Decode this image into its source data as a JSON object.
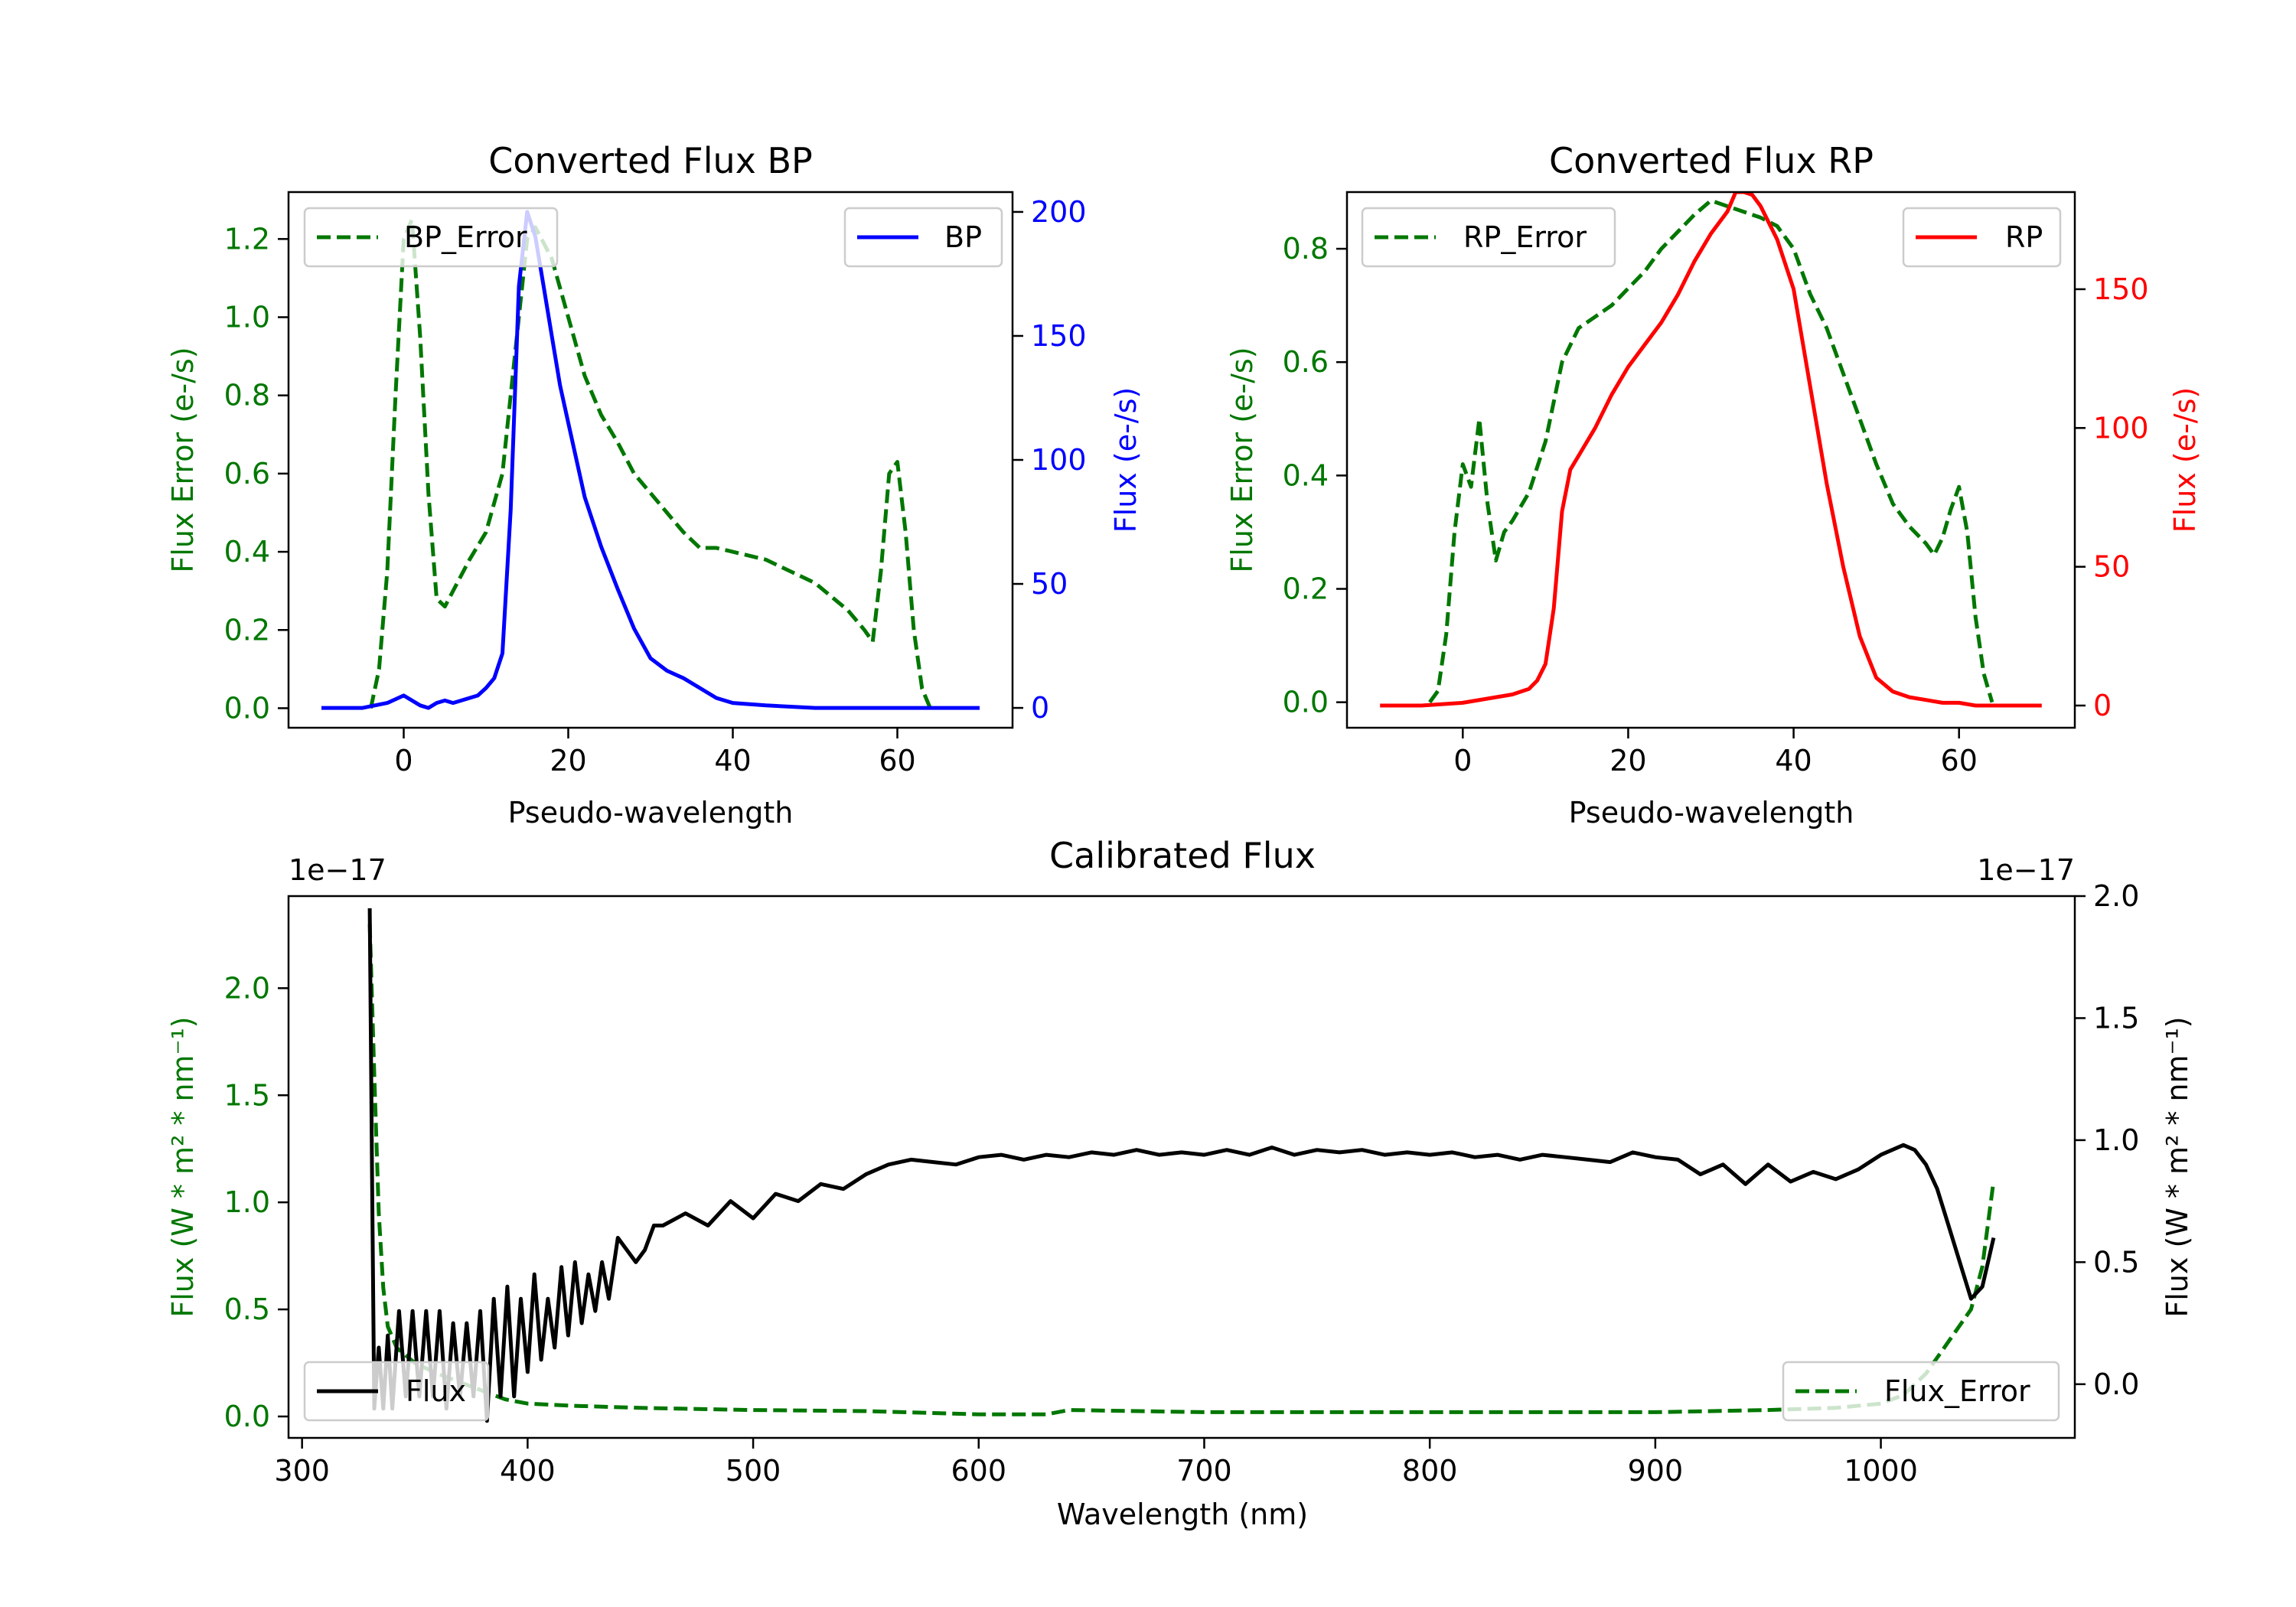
{
  "colors": {
    "error": "#007700",
    "bp": "#0000ff",
    "rp": "#ff0000",
    "calibrated": "#000000"
  },
  "chart_data": [
    {
      "id": "bp",
      "type": "line",
      "title": "Converted Flux BP",
      "xlabel": "Pseudo-wavelength",
      "ylabel_left": "Flux Error (e-/s)",
      "ylabel_right": "Flux (e-/s)",
      "xlim": [
        -14,
        74
      ],
      "ylim_left": [
        -0.05,
        1.32
      ],
      "ylim_right": [
        -8,
        208
      ],
      "xticks": [
        0,
        20,
        40,
        60
      ],
      "yticks_left": [
        0.0,
        0.2,
        0.4,
        0.6,
        0.8,
        1.0,
        1.2
      ],
      "yticks_right": [
        0,
        50,
        100,
        150,
        200
      ],
      "legend": [
        {
          "label": "BP_Error",
          "style": "dashed",
          "color": "#007700",
          "position": "upper-left"
        },
        {
          "label": "BP",
          "style": "solid",
          "color": "#0000ff",
          "position": "upper-right"
        }
      ],
      "series": [
        {
          "name": "BP_Error",
          "axis": "left",
          "style": "dashed",
          "color": "#007700",
          "x": [
            -4,
            -3,
            -2,
            -1,
            0,
            1,
            2,
            3,
            4,
            5,
            6,
            8,
            10,
            12,
            14,
            15,
            16,
            17,
            18,
            20,
            22,
            24,
            26,
            28,
            30,
            32,
            34,
            36,
            38,
            40,
            44,
            46,
            48,
            50,
            54,
            56,
            57,
            58,
            59,
            60,
            61,
            62,
            63,
            64
          ],
          "y": [
            0.0,
            0.1,
            0.35,
            0.8,
            1.2,
            1.25,
            0.95,
            0.55,
            0.28,
            0.26,
            0.3,
            0.38,
            0.45,
            0.6,
            1.0,
            1.2,
            1.23,
            1.19,
            1.15,
            1.0,
            0.85,
            0.75,
            0.68,
            0.6,
            0.55,
            0.5,
            0.45,
            0.41,
            0.41,
            0.4,
            0.38,
            0.36,
            0.34,
            0.32,
            0.25,
            0.2,
            0.17,
            0.35,
            0.6,
            0.63,
            0.45,
            0.2,
            0.05,
            0.0
          ]
        },
        {
          "name": "BP",
          "axis": "right",
          "style": "solid",
          "color": "#0000ff",
          "x": [
            -10,
            -5,
            -2,
            0,
            1,
            2,
            3,
            4,
            5,
            6,
            7,
            8,
            9,
            10,
            11,
            12,
            13,
            14,
            15,
            16,
            17,
            18,
            19,
            20,
            22,
            24,
            26,
            28,
            30,
            32,
            34,
            36,
            38,
            40,
            44,
            50,
            60,
            70
          ],
          "y": [
            0,
            0,
            2,
            5,
            3,
            1,
            0,
            2,
            3,
            2,
            3,
            4,
            5,
            8,
            12,
            22,
            80,
            170,
            200,
            190,
            170,
            150,
            130,
            115,
            85,
            65,
            48,
            32,
            20,
            15,
            12,
            8,
            4,
            2,
            1,
            0,
            0,
            0
          ]
        }
      ]
    },
    {
      "id": "rp",
      "type": "line",
      "title": "Converted Flux RP",
      "xlabel": "Pseudo-wavelength",
      "ylabel_left": "Flux Error (e-/s)",
      "ylabel_right": "Flux (e-/s)",
      "xlim": [
        -14,
        74
      ],
      "ylim_left": [
        -0.045,
        0.9
      ],
      "ylim_right": [
        -8,
        185
      ],
      "xticks": [
        0,
        20,
        40,
        60
      ],
      "yticks_left": [
        0.0,
        0.2,
        0.4,
        0.6,
        0.8
      ],
      "yticks_right": [
        0,
        50,
        100,
        150
      ],
      "legend": [
        {
          "label": "RP_Error",
          "style": "dashed",
          "color": "#007700",
          "position": "upper-left"
        },
        {
          "label": "RP",
          "style": "solid",
          "color": "#ff0000",
          "position": "upper-right"
        }
      ],
      "series": [
        {
          "name": "RP_Error",
          "axis": "left",
          "style": "dashed",
          "color": "#007700",
          "x": [
            -4,
            -3,
            -2,
            -1,
            0,
            1,
            2,
            3,
            4,
            5,
            6,
            8,
            10,
            12,
            14,
            16,
            18,
            20,
            22,
            24,
            26,
            28,
            30,
            32,
            34,
            36,
            38,
            40,
            42,
            44,
            46,
            48,
            50,
            52,
            54,
            56,
            57,
            58,
            59,
            60,
            61,
            62,
            63,
            64
          ],
          "y": [
            0.0,
            0.02,
            0.12,
            0.3,
            0.42,
            0.38,
            0.5,
            0.35,
            0.25,
            0.3,
            0.32,
            0.37,
            0.46,
            0.6,
            0.66,
            0.68,
            0.7,
            0.73,
            0.76,
            0.8,
            0.83,
            0.86,
            0.885,
            0.875,
            0.865,
            0.855,
            0.84,
            0.8,
            0.72,
            0.66,
            0.58,
            0.5,
            0.42,
            0.35,
            0.31,
            0.28,
            0.26,
            0.29,
            0.34,
            0.38,
            0.3,
            0.15,
            0.05,
            0.0
          ]
        },
        {
          "name": "RP",
          "axis": "right",
          "style": "solid",
          "color": "#ff0000",
          "x": [
            -10,
            -5,
            0,
            4,
            6,
            8,
            9,
            10,
            11,
            12,
            13,
            14,
            16,
            18,
            20,
            22,
            24,
            26,
            28,
            30,
            32,
            33,
            34,
            35,
            36,
            38,
            40,
            42,
            44,
            46,
            48,
            50,
            52,
            54,
            56,
            58,
            60,
            62,
            66,
            70
          ],
          "y": [
            0,
            0,
            1,
            3,
            4,
            6,
            9,
            15,
            35,
            70,
            85,
            90,
            100,
            112,
            122,
            130,
            138,
            148,
            160,
            170,
            178,
            185,
            185,
            184,
            180,
            168,
            150,
            115,
            80,
            50,
            25,
            10,
            5,
            3,
            2,
            1,
            1,
            0,
            0,
            0
          ]
        }
      ]
    },
    {
      "id": "calibrated",
      "type": "line",
      "title": "Calibrated Flux",
      "xlabel": "Wavelength (nm)",
      "ylabel_left": "Flux (W * m² * nm⁻¹)",
      "ylabel_right": "Flux (W * m² * nm⁻¹)",
      "offset_left": "1e−17",
      "offset_right": "1e−17",
      "xlim": [
        294,
        1086
      ],
      "ylim_left": [
        -0.1,
        2.43
      ],
      "ylim_right": [
        -0.22,
        2.0
      ],
      "xticks": [
        300,
        400,
        500,
        600,
        700,
        800,
        900,
        1000
      ],
      "yticks_left": [
        0.0,
        0.5,
        1.0,
        1.5,
        2.0
      ],
      "yticks_right": [
        0.0,
        0.5,
        1.0,
        1.5,
        2.0
      ],
      "legend": [
        {
          "label": "Flux",
          "style": "solid",
          "color": "#000000",
          "position": "lower-left"
        },
        {
          "label": "Flux_Error",
          "style": "dashed",
          "color": "#007700",
          "position": "lower-right"
        }
      ],
      "series": [
        {
          "name": "Flux_Error",
          "axis": "left",
          "style": "dashed",
          "color": "#007700",
          "x": [
            330,
            332,
            334,
            336,
            338,
            342,
            350,
            360,
            370,
            380,
            390,
            400,
            420,
            450,
            500,
            550,
            600,
            630,
            640,
            700,
            800,
            900,
            950,
            980,
            1000,
            1010,
            1020,
            1030,
            1040,
            1045,
            1050
          ],
          "y": [
            2.3,
            1.6,
            0.95,
            0.6,
            0.42,
            0.32,
            0.25,
            0.2,
            0.16,
            0.12,
            0.08,
            0.06,
            0.05,
            0.04,
            0.03,
            0.025,
            0.01,
            0.01,
            0.03,
            0.02,
            0.02,
            0.02,
            0.03,
            0.04,
            0.06,
            0.1,
            0.2,
            0.35,
            0.5,
            0.7,
            1.1
          ]
        },
        {
          "name": "Flux",
          "axis": "right",
          "style": "solid",
          "color": "#000000",
          "x": [
            330,
            331,
            332,
            334,
            336,
            338,
            340,
            343,
            346,
            349,
            352,
            355,
            358,
            361,
            364,
            367,
            370,
            373,
            376,
            379,
            382,
            385,
            388,
            391,
            394,
            397,
            400,
            403,
            406,
            409,
            412,
            415,
            418,
            421,
            424,
            427,
            430,
            433,
            436,
            440,
            444,
            448,
            452,
            456,
            460,
            470,
            480,
            490,
            500,
            510,
            520,
            530,
            540,
            550,
            560,
            570,
            580,
            590,
            600,
            610,
            620,
            630,
            640,
            650,
            660,
            670,
            680,
            690,
            700,
            710,
            720,
            730,
            740,
            750,
            760,
            770,
            780,
            790,
            800,
            810,
            820,
            830,
            840,
            850,
            860,
            870,
            880,
            890,
            900,
            910,
            920,
            930,
            940,
            950,
            960,
            970,
            980,
            990,
            1000,
            1010,
            1015,
            1020,
            1025,
            1030,
            1035,
            1040,
            1045,
            1050
          ],
          "y": [
            1.95,
            0.9,
            -0.1,
            0.15,
            -0.1,
            0.2,
            -0.1,
            0.3,
            -0.05,
            0.3,
            -0.05,
            0.3,
            -0.05,
            0.3,
            -0.1,
            0.25,
            -0.05,
            0.25,
            -0.05,
            0.3,
            -0.15,
            0.35,
            -0.05,
            0.4,
            -0.05,
            0.35,
            0.05,
            0.45,
            0.1,
            0.35,
            0.15,
            0.48,
            0.2,
            0.5,
            0.25,
            0.45,
            0.3,
            0.5,
            0.35,
            0.6,
            0.55,
            0.5,
            0.55,
            0.65,
            0.65,
            0.7,
            0.65,
            0.75,
            0.68,
            0.78,
            0.75,
            0.82,
            0.8,
            0.86,
            0.9,
            0.92,
            0.91,
            0.9,
            0.93,
            0.94,
            0.92,
            0.94,
            0.93,
            0.95,
            0.94,
            0.96,
            0.94,
            0.95,
            0.94,
            0.96,
            0.94,
            0.97,
            0.94,
            0.96,
            0.95,
            0.96,
            0.94,
            0.95,
            0.94,
            0.95,
            0.93,
            0.94,
            0.92,
            0.94,
            0.93,
            0.92,
            0.91,
            0.95,
            0.93,
            0.92,
            0.86,
            0.9,
            0.82,
            0.9,
            0.83,
            0.87,
            0.84,
            0.88,
            0.94,
            0.98,
            0.96,
            0.9,
            0.8,
            0.65,
            0.5,
            0.35,
            0.4,
            0.6
          ]
        }
      ]
    }
  ]
}
